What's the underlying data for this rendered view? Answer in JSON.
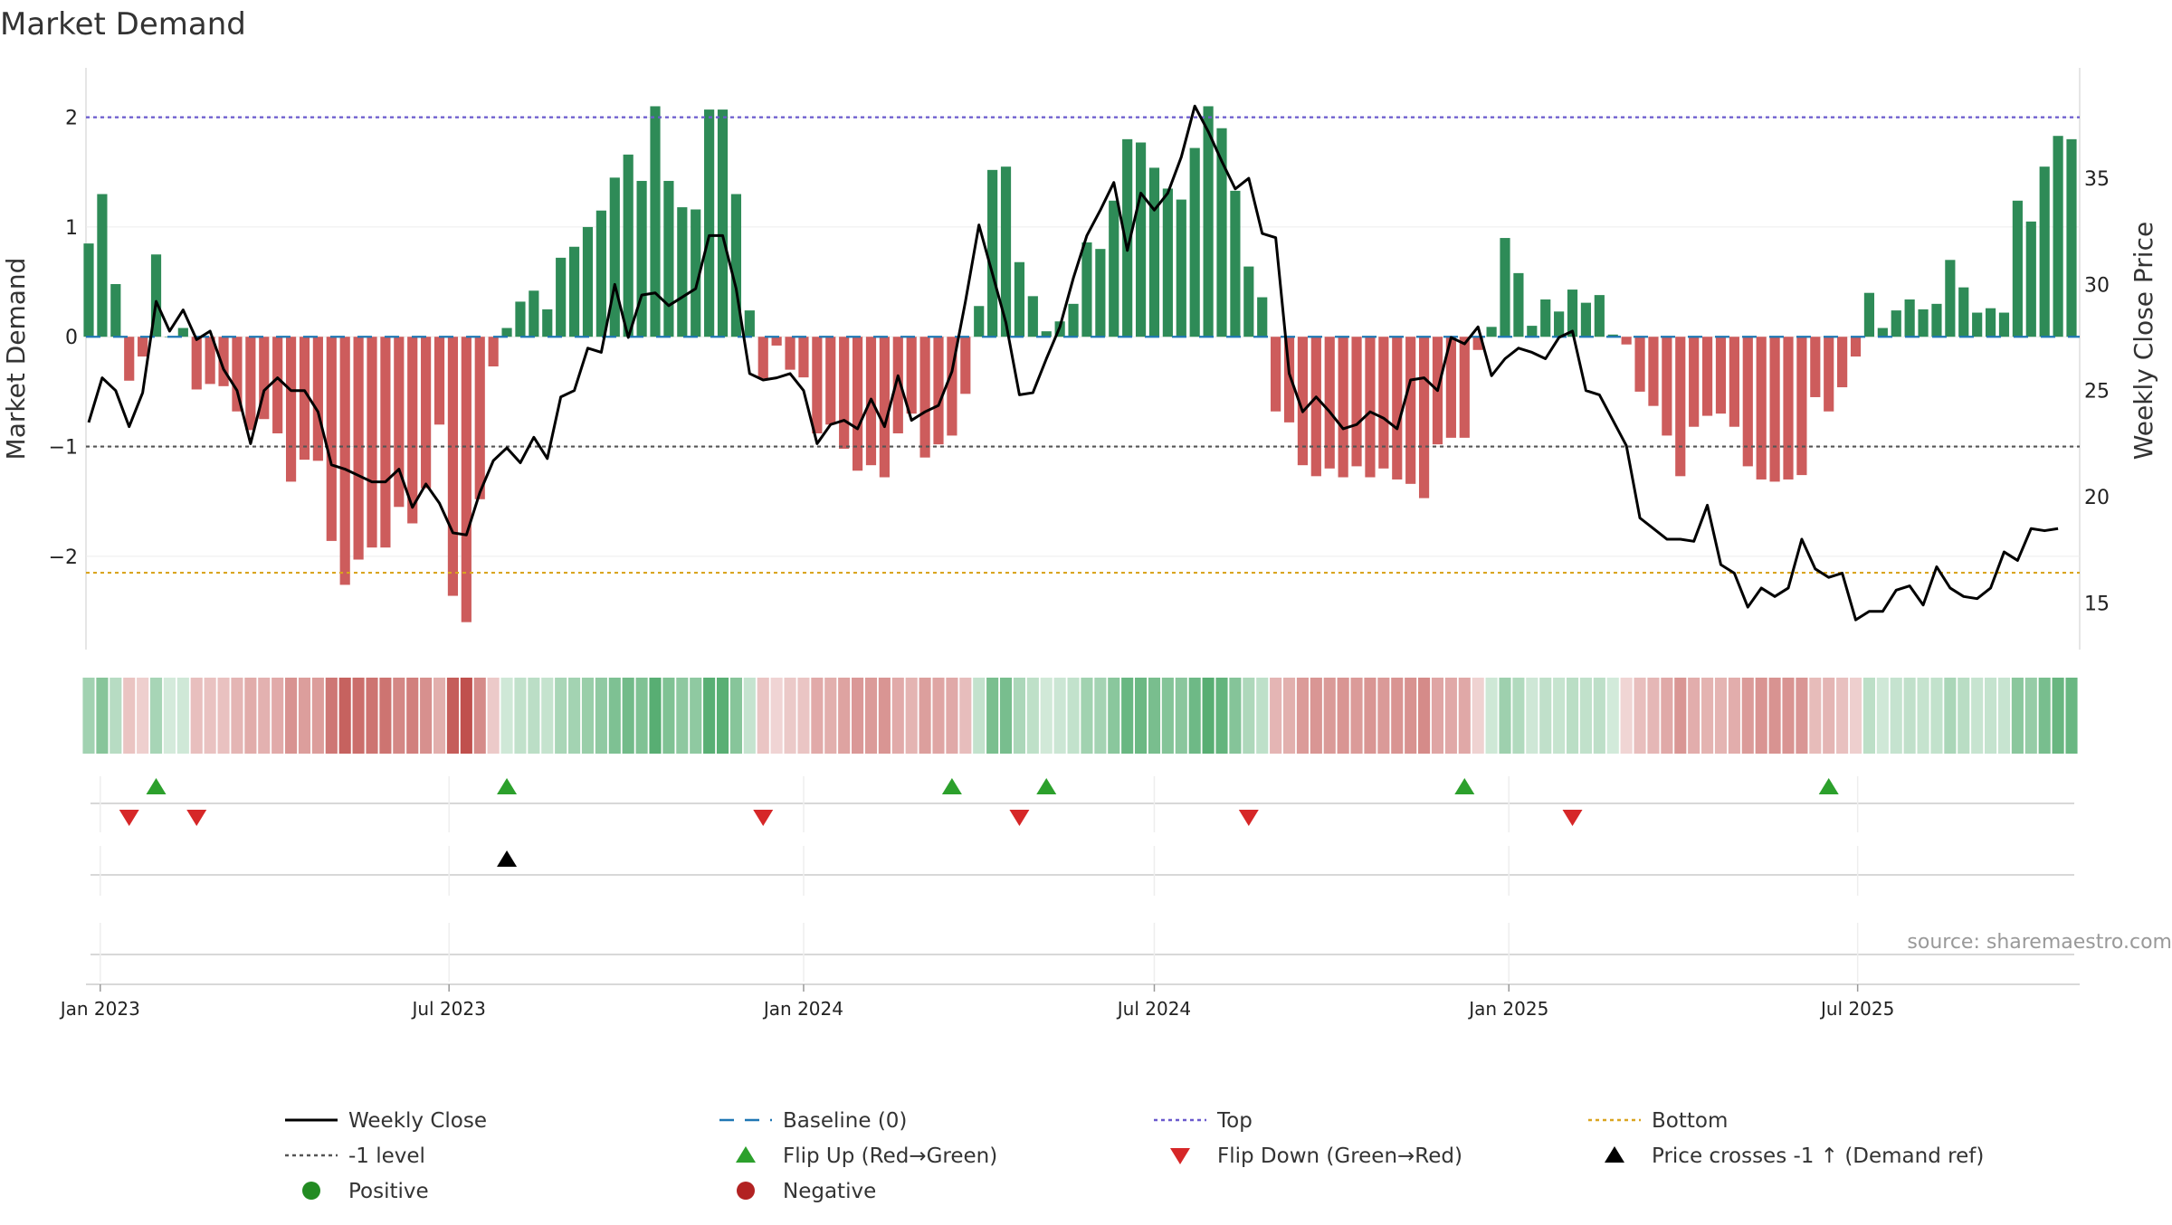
{
  "chart_data": {
    "type": "bar",
    "title": "Market Demand",
    "ylabel": "Market Demand",
    "y2label": "Weekly Close Price",
    "source": "source: sharemaestro.com",
    "ylim": [
      -2.85,
      2.45
    ],
    "y2lim": [
      12.8,
      40.2
    ],
    "yticks": [
      {
        "v": 2,
        "label": "2"
      },
      {
        "v": 1,
        "label": "1"
      },
      {
        "v": 0,
        "label": "0"
      },
      {
        "v": -1,
        "label": "−1"
      },
      {
        "v": -2,
        "label": "−2"
      }
    ],
    "y2ticks": [
      {
        "v": 35,
        "label": "35"
      },
      {
        "v": 30,
        "label": "30"
      },
      {
        "v": 25,
        "label": "25"
      },
      {
        "v": 20,
        "label": "20"
      },
      {
        "v": 15,
        "label": "15"
      }
    ],
    "xticks": [
      "Jan 2023",
      "Jul 2023",
      "Jan 2024",
      "Jul 2024",
      "Jan 2025",
      "Jul 2025"
    ],
    "x_start": "2022-12-26",
    "x_step_days": 7,
    "reference_lines": {
      "top": 2.0,
      "minus_one": -1.0,
      "bottom": -2.15,
      "baseline": 0
    },
    "colors": {
      "positive": "#2e8b57",
      "negative": "#cd5c5c",
      "close": "#000000",
      "top": "#6a5acd",
      "bottom": "#daa520",
      "minus_one": "#555555",
      "baseline": "#1f77b4",
      "flip_up": "#2ca02c",
      "flip_down": "#d62728",
      "cross": "#000000"
    },
    "demand": [
      0.85,
      1.3,
      0.48,
      -0.4,
      -0.18,
      0.75,
      0.0,
      0.08,
      -0.48,
      -0.43,
      -0.45,
      -0.68,
      -0.85,
      -0.75,
      -0.88,
      -1.32,
      -1.12,
      -1.13,
      -1.86,
      -2.26,
      -2.03,
      -1.92,
      -1.92,
      -1.55,
      -1.7,
      -1.38,
      -0.8,
      -2.36,
      -2.6,
      -1.48,
      -0.27,
      0.08,
      0.32,
      0.42,
      0.25,
      0.72,
      0.82,
      1.0,
      1.15,
      1.45,
      1.66,
      1.42,
      2.1,
      1.42,
      1.18,
      1.16,
      2.07,
      2.07,
      1.3,
      0.24,
      -0.38,
      -0.08,
      -0.3,
      -0.37,
      -0.88,
      -0.8,
      -1.02,
      -1.22,
      -1.17,
      -1.28,
      -0.88,
      -0.7,
      -1.1,
      -0.98,
      -0.9,
      -0.52,
      0.28,
      1.52,
      1.55,
      0.68,
      0.37,
      0.05,
      0.14,
      0.3,
      0.86,
      0.8,
      1.24,
      1.8,
      1.77,
      1.54,
      1.35,
      1.25,
      1.72,
      2.1,
      1.9,
      1.33,
      0.64,
      0.36,
      -0.68,
      -0.78,
      -1.17,
      -1.27,
      -1.2,
      -1.28,
      -1.18,
      -1.28,
      -1.2,
      -1.3,
      -1.34,
      -1.47,
      -0.98,
      -0.92,
      -0.92,
      -0.12,
      0.09,
      0.9,
      0.58,
      0.1,
      0.34,
      0.23,
      0.43,
      0.31,
      0.38,
      0.02,
      -0.07,
      -0.5,
      -0.63,
      -0.9,
      -1.27,
      -0.82,
      -0.72,
      -0.7,
      -0.82,
      -1.18,
      -1.3,
      -1.32,
      -1.3,
      -1.26,
      -0.55,
      -0.68,
      -0.46,
      -0.18,
      0.4,
      0.08,
      0.24,
      0.34,
      0.25,
      0.3,
      0.7,
      0.45,
      0.22,
      0.26,
      0.22,
      1.24,
      1.05,
      1.55,
      1.83,
      1.8
    ],
    "close": [
      23.5,
      25.6,
      25.0,
      23.3,
      24.9,
      29.2,
      27.8,
      28.8,
      27.4,
      27.8,
      26.0,
      25.0,
      22.5,
      25.0,
      25.6,
      25.0,
      25.0,
      24.0,
      21.5,
      21.3,
      21.0,
      20.7,
      20.7,
      21.3,
      19.5,
      20.6,
      19.7,
      18.3,
      18.2,
      20.2,
      21.7,
      22.3,
      21.6,
      22.8,
      21.8,
      24.7,
      25.0,
      27.0,
      26.8,
      30.0,
      27.5,
      29.5,
      29.6,
      29.0,
      29.4,
      29.8,
      32.3,
      32.3,
      29.8,
      25.8,
      25.5,
      25.6,
      25.8,
      25.0,
      22.5,
      23.4,
      23.6,
      23.2,
      24.6,
      23.3,
      25.7,
      23.6,
      24.0,
      24.3,
      25.9,
      29.2,
      32.8,
      30.5,
      28.2,
      24.8,
      24.9,
      26.5,
      28.0,
      30.3,
      32.3,
      33.5,
      34.8,
      31.6,
      34.3,
      33.5,
      34.3,
      36.0,
      38.4,
      37.2,
      35.8,
      34.5,
      35.0,
      32.4,
      32.2,
      25.8,
      24.0,
      24.7,
      24.0,
      23.2,
      23.4,
      24.0,
      23.7,
      23.2,
      25.5,
      25.6,
      25.0,
      27.5,
      27.2,
      28.0,
      25.7,
      26.5,
      27.0,
      26.8,
      26.5,
      27.5,
      27.8,
      25.0,
      24.8,
      23.6,
      22.4,
      19.0,
      18.5,
      18.0,
      18.0,
      17.9,
      19.6,
      16.8,
      16.4,
      14.8,
      15.7,
      15.3,
      15.7,
      18.0,
      16.6,
      16.2,
      16.4,
      14.2,
      14.6,
      14.6,
      15.6,
      15.8,
      14.9,
      16.7,
      15.7,
      15.3,
      15.2,
      15.7,
      17.4,
      17.0,
      18.5,
      18.4,
      18.5
    ],
    "flip_up_idx": [
      5,
      31,
      64,
      71,
      102,
      129
    ],
    "flip_down_idx": [
      3,
      8,
      50,
      69,
      86,
      110
    ],
    "cross_idx": [
      31
    ],
    "legend": [
      {
        "label": "Weekly Close",
        "kind": "line",
        "color": "#000000"
      },
      {
        "label": "Baseline (0)",
        "kind": "dashed",
        "color": "#1f77b4"
      },
      {
        "label": "Top",
        "kind": "dotted",
        "color": "#6a5acd"
      },
      {
        "label": "Bottom",
        "kind": "dotted",
        "color": "#daa520"
      },
      {
        "label": "-1 level",
        "kind": "dotted",
        "color": "#555555"
      },
      {
        "label": "Flip Up (Red→Green)",
        "kind": "tri-up",
        "color": "#2ca02c"
      },
      {
        "label": "Flip Down (Green→Red)",
        "kind": "tri-down",
        "color": "#d62728"
      },
      {
        "label": "Price crosses -1 ↑ (Demand ref)",
        "kind": "tri-up",
        "color": "#000000"
      },
      {
        "label": "Positive",
        "kind": "dot",
        "color": "#228b22"
      },
      {
        "label": "Negative",
        "kind": "dot",
        "color": "#b22222"
      }
    ]
  }
}
